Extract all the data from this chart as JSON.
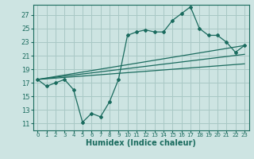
{
  "bg_color": "#cde4e2",
  "grid_color": "#a8c8c5",
  "line_color": "#1a6b5e",
  "xlabel": "Humidex (Indice chaleur)",
  "xlim": [
    -0.5,
    23.5
  ],
  "ylim": [
    10,
    28.5
  ],
  "yticks": [
    11,
    13,
    15,
    17,
    19,
    21,
    23,
    25,
    27
  ],
  "xticks": [
    0,
    1,
    2,
    3,
    4,
    5,
    6,
    7,
    8,
    9,
    10,
    11,
    12,
    13,
    14,
    15,
    16,
    17,
    18,
    19,
    20,
    21,
    22,
    23
  ],
  "series1_x": [
    0,
    1,
    2,
    3,
    4,
    5,
    6,
    7,
    8,
    9,
    10,
    11,
    12,
    13,
    14,
    15,
    16,
    17,
    18,
    19,
    20,
    21,
    22,
    23
  ],
  "series1_y": [
    17.5,
    16.5,
    17.0,
    17.5,
    16.0,
    11.2,
    12.5,
    12.0,
    14.2,
    17.5,
    24.0,
    24.5,
    24.8,
    24.5,
    24.5,
    26.2,
    27.2,
    28.2,
    25.0,
    24.0,
    24.0,
    23.0,
    21.5,
    22.5
  ],
  "line1_x": [
    0,
    23
  ],
  "line1_y": [
    17.5,
    22.5
  ],
  "line2_x": [
    0,
    23
  ],
  "line2_y": [
    17.5,
    21.2
  ],
  "line3_x": [
    0,
    23
  ],
  "line3_y": [
    17.5,
    19.8
  ]
}
